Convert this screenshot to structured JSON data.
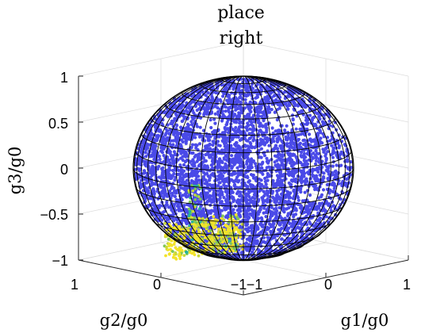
{
  "chart_data": {
    "type": "scatter",
    "projection": "3d",
    "title": [
      "place",
      "right"
    ],
    "xlabel": "g1/g0",
    "ylabel": "g2/g0",
    "zlabel": "g3/g0",
    "xlim": [
      -1,
      1
    ],
    "ylim": [
      -1,
      1
    ],
    "zlim": [
      -1,
      1
    ],
    "x_ticks": [
      "−1",
      "0",
      "1"
    ],
    "y_ticks": [
      "1",
      "0",
      "−1"
    ],
    "z_ticks": [
      "1",
      "0.5",
      "0",
      "−0.5",
      "−1"
    ],
    "grid": true,
    "overlay": "unit sphere wireframe",
    "colors": {
      "points": "#4a4ae8",
      "cluster": [
        "#f2e32a",
        "#c8d83a",
        "#7cc65a",
        "#26b29a"
      ],
      "wire": "#000000",
      "axis": "#262626",
      "grid": "#dcdcdc"
    }
  }
}
